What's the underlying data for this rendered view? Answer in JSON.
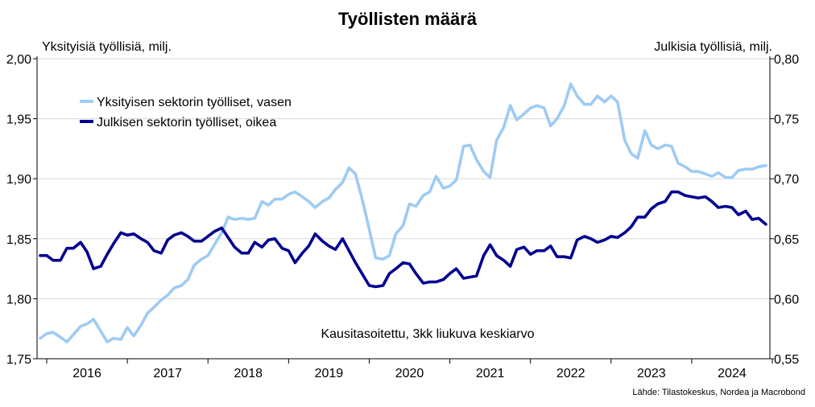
{
  "chart_data": {
    "type": "line",
    "title": "Työllisten määrä",
    "ylabel_left": "Yksityisiä työllisiä, milj.",
    "ylabel_right": "Julkisia työllisiä, milj.",
    "annotation": "Kausitasoitettu, 3kk liukuva keskiarvo",
    "source": "Lähde: Tilastokeskus, Nordea ja Macrobond",
    "legend_position": "top-left",
    "grid": true,
    "y_left": {
      "min": 1.75,
      "max": 2.0,
      "ticks": [
        "1,75",
        "1,80",
        "1,85",
        "1,90",
        "1,95",
        "2,00"
      ]
    },
    "y_right": {
      "min": 0.55,
      "max": 0.8,
      "ticks": [
        "0,55",
        "0,60",
        "0,65",
        "0,70",
        "0,75",
        "0,80"
      ]
    },
    "x_range": [
      2015.88,
      2024.97
    ],
    "x_ticks": [
      "2016",
      "2017",
      "2018",
      "2019",
      "2020",
      "2021",
      "2022",
      "2023",
      "2024"
    ],
    "series": [
      {
        "name": "Yksityisen sektorin työlliset, vasen",
        "axis": "left",
        "color": "#9ecbf3",
        "points": [
          [
            2015.92,
            1.767
          ],
          [
            2016.0,
            1.771
          ],
          [
            2016.08,
            1.772
          ],
          [
            2016.17,
            1.768
          ],
          [
            2016.25,
            1.764
          ],
          [
            2016.33,
            1.77
          ],
          [
            2016.42,
            1.777
          ],
          [
            2016.5,
            1.779
          ],
          [
            2016.58,
            1.783
          ],
          [
            2016.67,
            1.773
          ],
          [
            2016.75,
            1.764
          ],
          [
            2016.83,
            1.767
          ],
          [
            2016.92,
            1.766
          ],
          [
            2017.0,
            1.776
          ],
          [
            2017.08,
            1.769
          ],
          [
            2017.17,
            1.778
          ],
          [
            2017.25,
            1.788
          ],
          [
            2017.33,
            1.793
          ],
          [
            2017.42,
            1.799
          ],
          [
            2017.5,
            1.803
          ],
          [
            2017.58,
            1.809
          ],
          [
            2017.67,
            1.811
          ],
          [
            2017.75,
            1.816
          ],
          [
            2017.83,
            1.828
          ],
          [
            2017.92,
            1.833
          ],
          [
            2018.0,
            1.836
          ],
          [
            2018.08,
            1.845
          ],
          [
            2018.17,
            1.855
          ],
          [
            2018.25,
            1.868
          ],
          [
            2018.33,
            1.866
          ],
          [
            2018.42,
            1.867
          ],
          [
            2018.5,
            1.866
          ],
          [
            2018.58,
            1.867
          ],
          [
            2018.67,
            1.881
          ],
          [
            2018.75,
            1.878
          ],
          [
            2018.83,
            1.883
          ],
          [
            2018.92,
            1.883
          ],
          [
            2019.0,
            1.887
          ],
          [
            2019.08,
            1.889
          ],
          [
            2019.17,
            1.885
          ],
          [
            2019.25,
            1.881
          ],
          [
            2019.33,
            1.876
          ],
          [
            2019.42,
            1.881
          ],
          [
            2019.5,
            1.884
          ],
          [
            2019.58,
            1.891
          ],
          [
            2019.67,
            1.897
          ],
          [
            2019.75,
            1.909
          ],
          [
            2019.83,
            1.904
          ],
          [
            2019.92,
            1.881
          ],
          [
            2020.0,
            1.858
          ],
          [
            2020.08,
            1.834
          ],
          [
            2020.17,
            1.833
          ],
          [
            2020.25,
            1.836
          ],
          [
            2020.33,
            1.854
          ],
          [
            2020.42,
            1.861
          ],
          [
            2020.5,
            1.879
          ],
          [
            2020.58,
            1.877
          ],
          [
            2020.67,
            1.886
          ],
          [
            2020.75,
            1.889
          ],
          [
            2020.83,
            1.902
          ],
          [
            2020.92,
            1.892
          ],
          [
            2021.0,
            1.894
          ],
          [
            2021.08,
            1.899
          ],
          [
            2021.17,
            1.927
          ],
          [
            2021.25,
            1.928
          ],
          [
            2021.33,
            1.916
          ],
          [
            2021.42,
            1.906
          ],
          [
            2021.5,
            1.901
          ],
          [
            2021.58,
            1.932
          ],
          [
            2021.67,
            1.943
          ],
          [
            2021.75,
            1.961
          ],
          [
            2021.83,
            1.949
          ],
          [
            2021.92,
            1.954
          ],
          [
            2022.0,
            1.959
          ],
          [
            2022.08,
            1.961
          ],
          [
            2022.17,
            1.959
          ],
          [
            2022.25,
            1.944
          ],
          [
            2022.33,
            1.95
          ],
          [
            2022.42,
            1.961
          ],
          [
            2022.5,
            1.979
          ],
          [
            2022.58,
            1.969
          ],
          [
            2022.67,
            1.962
          ],
          [
            2022.75,
            1.962
          ],
          [
            2022.83,
            1.969
          ],
          [
            2022.92,
            1.964
          ],
          [
            2023.0,
            1.969
          ],
          [
            2023.08,
            1.964
          ],
          [
            2023.17,
            1.932
          ],
          [
            2023.25,
            1.921
          ],
          [
            2023.33,
            1.917
          ],
          [
            2023.42,
            1.94
          ],
          [
            2023.5,
            1.928
          ],
          [
            2023.58,
            1.925
          ],
          [
            2023.67,
            1.928
          ],
          [
            2023.75,
            1.927
          ],
          [
            2023.83,
            1.913
          ],
          [
            2023.92,
            1.91
          ],
          [
            2024.0,
            1.906
          ],
          [
            2024.08,
            1.906
          ],
          [
            2024.17,
            1.904
          ],
          [
            2024.25,
            1.902
          ],
          [
            2024.33,
            1.905
          ],
          [
            2024.42,
            1.901
          ],
          [
            2024.5,
            1.901
          ],
          [
            2024.58,
            1.907
          ],
          [
            2024.67,
            1.908
          ],
          [
            2024.75,
            1.908
          ],
          [
            2024.83,
            1.91
          ],
          [
            2024.92,
            1.911
          ]
        ]
      },
      {
        "name": "Julkisen sektorin työlliset, oikea",
        "axis": "right",
        "color": "#00008f",
        "points": [
          [
            2015.92,
            0.636
          ],
          [
            2016.0,
            0.636
          ],
          [
            2016.08,
            0.632
          ],
          [
            2016.17,
            0.632
          ],
          [
            2016.25,
            0.642
          ],
          [
            2016.33,
            0.642
          ],
          [
            2016.42,
            0.647
          ],
          [
            2016.5,
            0.639
          ],
          [
            2016.58,
            0.625
          ],
          [
            2016.67,
            0.627
          ],
          [
            2016.75,
            0.637
          ],
          [
            2016.83,
            0.646
          ],
          [
            2016.92,
            0.655
          ],
          [
            2017.0,
            0.653
          ],
          [
            2017.08,
            0.654
          ],
          [
            2017.17,
            0.65
          ],
          [
            2017.25,
            0.647
          ],
          [
            2017.33,
            0.64
          ],
          [
            2017.42,
            0.638
          ],
          [
            2017.5,
            0.649
          ],
          [
            2017.58,
            0.653
          ],
          [
            2017.67,
            0.655
          ],
          [
            2017.75,
            0.652
          ],
          [
            2017.83,
            0.648
          ],
          [
            2017.92,
            0.648
          ],
          [
            2018.0,
            0.652
          ],
          [
            2018.08,
            0.656
          ],
          [
            2018.17,
            0.659
          ],
          [
            2018.25,
            0.651
          ],
          [
            2018.33,
            0.643
          ],
          [
            2018.42,
            0.638
          ],
          [
            2018.5,
            0.638
          ],
          [
            2018.58,
            0.647
          ],
          [
            2018.67,
            0.643
          ],
          [
            2018.75,
            0.649
          ],
          [
            2018.83,
            0.65
          ],
          [
            2018.92,
            0.642
          ],
          [
            2019.0,
            0.64
          ],
          [
            2019.08,
            0.63
          ],
          [
            2019.17,
            0.638
          ],
          [
            2019.25,
            0.644
          ],
          [
            2019.33,
            0.654
          ],
          [
            2019.42,
            0.648
          ],
          [
            2019.5,
            0.644
          ],
          [
            2019.58,
            0.641
          ],
          [
            2019.67,
            0.65
          ],
          [
            2019.75,
            0.64
          ],
          [
            2019.83,
            0.63
          ],
          [
            2019.92,
            0.62
          ],
          [
            2020.0,
            0.611
          ],
          [
            2020.08,
            0.61
          ],
          [
            2020.17,
            0.611
          ],
          [
            2020.25,
            0.621
          ],
          [
            2020.33,
            0.625
          ],
          [
            2020.42,
            0.63
          ],
          [
            2020.5,
            0.629
          ],
          [
            2020.58,
            0.621
          ],
          [
            2020.67,
            0.613
          ],
          [
            2020.75,
            0.614
          ],
          [
            2020.83,
            0.614
          ],
          [
            2020.92,
            0.616
          ],
          [
            2021.0,
            0.621
          ],
          [
            2021.08,
            0.625
          ],
          [
            2021.17,
            0.617
          ],
          [
            2021.25,
            0.618
          ],
          [
            2021.33,
            0.619
          ],
          [
            2021.42,
            0.636
          ],
          [
            2021.5,
            0.645
          ],
          [
            2021.58,
            0.636
          ],
          [
            2021.67,
            0.632
          ],
          [
            2021.75,
            0.627
          ],
          [
            2021.83,
            0.641
          ],
          [
            2021.92,
            0.643
          ],
          [
            2022.0,
            0.637
          ],
          [
            2022.08,
            0.64
          ],
          [
            2022.17,
            0.64
          ],
          [
            2022.25,
            0.644
          ],
          [
            2022.33,
            0.635
          ],
          [
            2022.42,
            0.635
          ],
          [
            2022.5,
            0.634
          ],
          [
            2022.58,
            0.649
          ],
          [
            2022.67,
            0.652
          ],
          [
            2022.75,
            0.65
          ],
          [
            2022.83,
            0.647
          ],
          [
            2022.92,
            0.649
          ],
          [
            2023.0,
            0.652
          ],
          [
            2023.08,
            0.651
          ],
          [
            2023.17,
            0.655
          ],
          [
            2023.25,
            0.66
          ],
          [
            2023.33,
            0.668
          ],
          [
            2023.42,
            0.668
          ],
          [
            2023.5,
            0.675
          ],
          [
            2023.58,
            0.679
          ],
          [
            2023.67,
            0.681
          ],
          [
            2023.75,
            0.689
          ],
          [
            2023.83,
            0.689
          ],
          [
            2023.92,
            0.686
          ],
          [
            2024.0,
            0.685
          ],
          [
            2024.08,
            0.684
          ],
          [
            2024.17,
            0.685
          ],
          [
            2024.25,
            0.681
          ],
          [
            2024.33,
            0.676
          ],
          [
            2024.42,
            0.677
          ],
          [
            2024.5,
            0.676
          ],
          [
            2024.58,
            0.67
          ],
          [
            2024.67,
            0.673
          ],
          [
            2024.75,
            0.666
          ],
          [
            2024.83,
            0.667
          ],
          [
            2024.92,
            0.662
          ]
        ]
      }
    ]
  }
}
